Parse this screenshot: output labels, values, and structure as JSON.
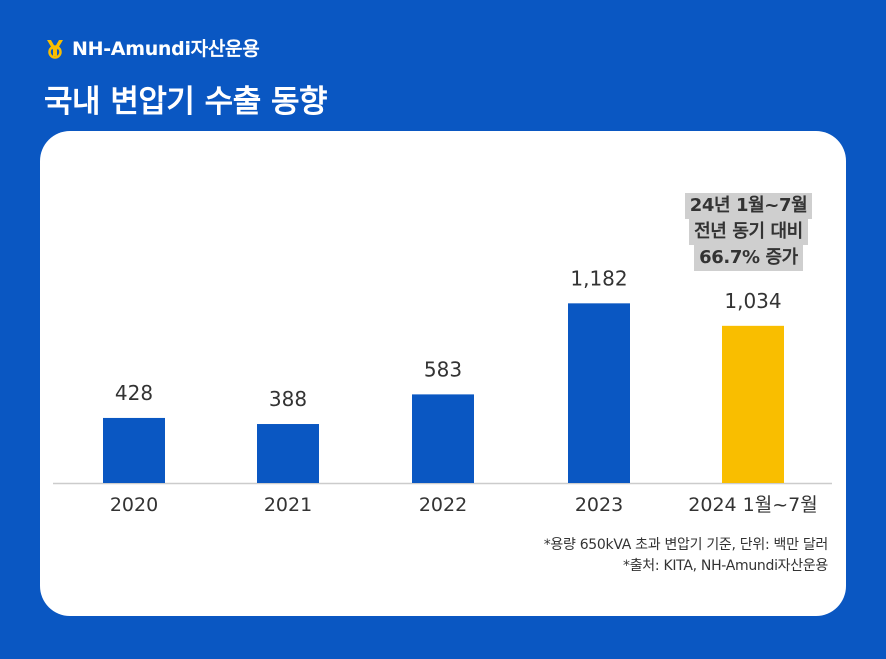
{
  "brand": {
    "name": "NH-Amundi자산운용"
  },
  "title": "국내 변압기 수출 동향",
  "colors": {
    "background": "#0a57c2",
    "bar": "#0a57c2",
    "highlight": "#f9be00",
    "axis": "#cccccc",
    "text": "#333333"
  },
  "callout": {
    "lines": [
      "24년 1월~7월",
      "전년 동기 대비",
      "66.7% 증가"
    ]
  },
  "footnotes": {
    "unit": "*용량 650kVA 초과 변압기 기준, 단위: 백만 달러",
    "source": "*출처: KITA, NH-Amundi자산운용"
  },
  "chart_data": {
    "type": "bar",
    "title": "국내 변압기 수출 동향",
    "categories": [
      "2020",
      "2021",
      "2022",
      "2023",
      "2024 1월~7월"
    ],
    "values": [
      428,
      388,
      583,
      1182,
      1034
    ],
    "value_labels": [
      "428",
      "388",
      "583",
      "1,182",
      "1,034"
    ],
    "highlight_index": 4,
    "xlabel": "",
    "ylabel": "",
    "unit": "백만 달러",
    "ylim": [
      0,
      1300
    ],
    "grid": false,
    "legend": "none"
  }
}
